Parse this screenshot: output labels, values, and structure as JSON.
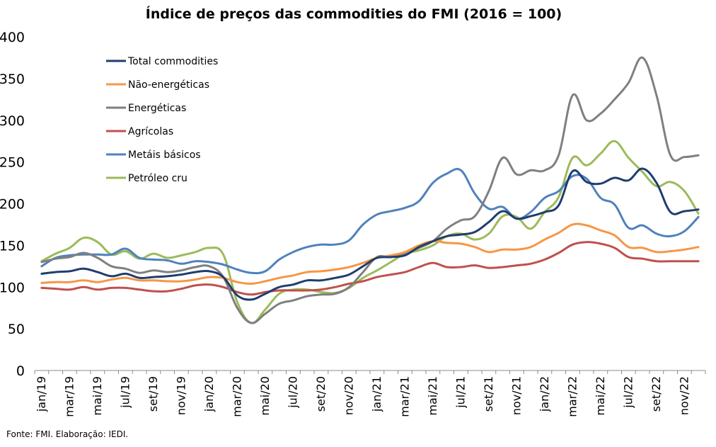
{
  "chart_data": {
    "type": "line",
    "title": "Índice de preços das commodities do FMI  (2016 = 100)",
    "source": "Fonte: FMI. Elaboração: IEDI.",
    "xlabel": "",
    "ylabel": "",
    "ylim": [
      0,
      400
    ],
    "yticks": [
      0,
      50,
      100,
      150,
      200,
      250,
      300,
      350,
      400
    ],
    "grid": false,
    "legend_position": "top-left",
    "x": [
      "jan/19",
      "fev/19",
      "mar/19",
      "abr/19",
      "mai/19",
      "jun/19",
      "jul/19",
      "ago/19",
      "set/19",
      "out/19",
      "nov/19",
      "dez/19",
      "jan/20",
      "fev/20",
      "mar/20",
      "abr/20",
      "mai/20",
      "jun/20",
      "jul/20",
      "ago/20",
      "set/20",
      "out/20",
      "nov/20",
      "dez/20",
      "jan/21",
      "fev/21",
      "mar/21",
      "abr/21",
      "mai/21",
      "jun/21",
      "jul/21",
      "ago/21",
      "set/21",
      "out/21",
      "nov/21",
      "dez/21",
      "jan/22",
      "fev/22",
      "mar/22",
      "abr/22",
      "mai/22",
      "jun/22",
      "jul/22",
      "ago/22",
      "set/22",
      "out/22",
      "nov/22",
      "dez/22"
    ],
    "xtick_labels": [
      "jan/19",
      "mar/19",
      "mai/19",
      "jul/19",
      "set/19",
      "nov/19",
      "jan/20",
      "mar/20",
      "mai/20",
      "jul/20",
      "set/20",
      "nov/20",
      "jan/21",
      "mar/21",
      "mai/21",
      "jul/21",
      "set/21",
      "nov/21",
      "jan/22",
      "mar/22",
      "mai/22",
      "jul/22",
      "set/22",
      "nov/22"
    ],
    "series": [
      {
        "name": "Total commodities",
        "color": "#1f3d6e",
        "values": [
          116,
          118,
          119,
          122,
          118,
          113,
          116,
          111,
          112,
          113,
          115,
          118,
          119,
          112,
          90,
          85,
          92,
          100,
          103,
          108,
          108,
          111,
          115,
          125,
          135,
          136,
          138,
          148,
          155,
          161,
          163,
          166,
          178,
          191,
          182,
          185,
          190,
          198,
          239,
          226,
          224,
          231,
          228,
          242,
          225,
          190,
          191,
          193
        ]
      },
      {
        "name": "Não-energéticas",
        "color": "#f79646",
        "values": [
          105,
          106,
          106,
          108,
          106,
          109,
          111,
          108,
          108,
          107,
          107,
          109,
          112,
          111,
          106,
          104,
          107,
          111,
          114,
          118,
          119,
          121,
          124,
          129,
          135,
          138,
          142,
          150,
          155,
          153,
          152,
          148,
          142,
          145,
          145,
          148,
          157,
          165,
          175,
          174,
          168,
          162,
          148,
          147,
          142,
          143,
          145,
          148
        ]
      },
      {
        "name": "Energéticas",
        "color": "#7f7f7f",
        "values": [
          130,
          134,
          136,
          141,
          135,
          125,
          122,
          117,
          120,
          118,
          120,
          124,
          125,
          112,
          75,
          57,
          68,
          80,
          84,
          89,
          91,
          92,
          100,
          118,
          136,
          136,
          140,
          147,
          155,
          170,
          180,
          185,
          215,
          255,
          235,
          240,
          240,
          258,
          330,
          300,
          308,
          325,
          345,
          375,
          330,
          258,
          256,
          258
        ]
      },
      {
        "name": "Agrícolas",
        "color": "#c0504d",
        "values": [
          99,
          98,
          97,
          100,
          97,
          99,
          99,
          97,
          95,
          95,
          98,
          102,
          103,
          100,
          94,
          91,
          94,
          96,
          96,
          96,
          97,
          100,
          104,
          107,
          112,
          115,
          118,
          124,
          129,
          124,
          124,
          126,
          123,
          124,
          126,
          128,
          133,
          141,
          151,
          154,
          152,
          147,
          136,
          134,
          131,
          131,
          131,
          131
        ]
      },
      {
        "name": "Metáis básicos",
        "color": "#4f81bd",
        "values": [
          125,
          135,
          138,
          139,
          139,
          139,
          146,
          135,
          133,
          132,
          128,
          131,
          130,
          127,
          121,
          117,
          119,
          133,
          142,
          148,
          151,
          151,
          156,
          175,
          187,
          191,
          195,
          203,
          225,
          236,
          240,
          212,
          194,
          196,
          182,
          190,
          207,
          215,
          233,
          230,
          207,
          199,
          171,
          174,
          164,
          161,
          167,
          184
        ]
      },
      {
        "name": "Petróleo cru",
        "color": "#9bbb59",
        "values": [
          131,
          140,
          147,
          159,
          154,
          139,
          143,
          134,
          140,
          135,
          138,
          142,
          147,
          139,
          82,
          57,
          73,
          92,
          97,
          97,
          94,
          93,
          99,
          111,
          120,
          130,
          140,
          144,
          150,
          161,
          164,
          157,
          164,
          185,
          184,
          170,
          190,
          208,
          255,
          246,
          260,
          275,
          255,
          238,
          221,
          226,
          215,
          188
        ]
      }
    ]
  }
}
